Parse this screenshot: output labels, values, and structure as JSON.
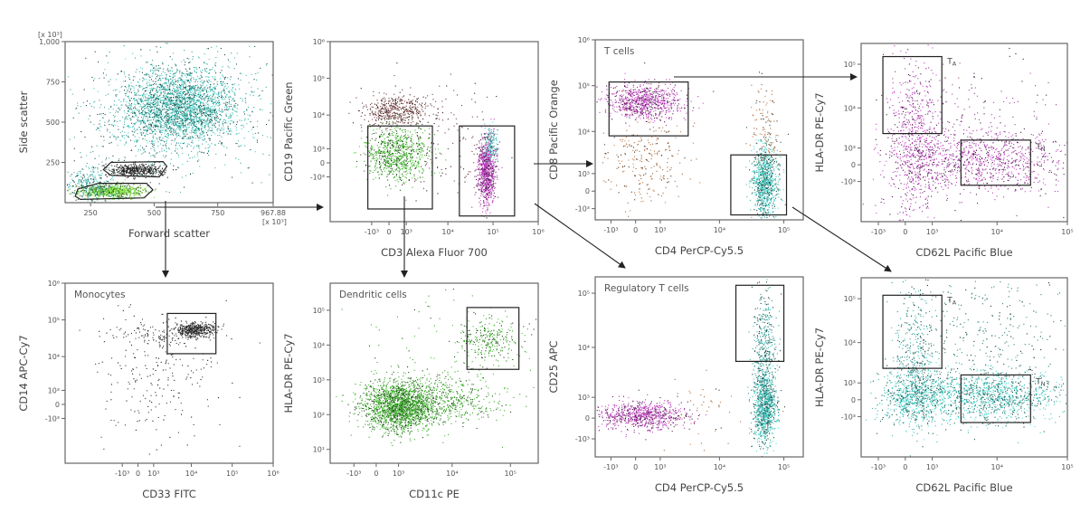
{
  "chart_data": {
    "type": "scatter",
    "panels": [
      {
        "title": "",
        "xlabel": "Forward scatter",
        "ylabel": "Side scatter",
        "x_unit_note": "[x 10³]",
        "y_unit_note": "[x 10³]",
        "xscale": "linear",
        "yscale": "linear",
        "xlim": [
          150,
          967.88
        ],
        "ylim": [
          0,
          1000
        ],
        "xticks": [
          {
            "v": 250,
            "label": "250"
          },
          {
            "v": 500,
            "label": "500"
          },
          {
            "v": 750,
            "label": "750"
          },
          {
            "v": 967.88,
            "label": "967.88"
          }
        ],
        "yticks": [
          {
            "v": 250,
            "label": "250"
          },
          {
            "v": 500,
            "label": "500"
          },
          {
            "v": 750,
            "label": "750"
          },
          {
            "v": 1000,
            "label": "1,000"
          }
        ],
        "gates": [
          {
            "type": "polygon",
            "points": [
              [
                300,
                205
              ],
              [
                330,
                250
              ],
              [
                535,
                255
              ],
              [
                550,
                225
              ],
              [
                520,
                160
              ],
              [
                330,
                170
              ]
            ],
            "label": ""
          },
          {
            "type": "polygon",
            "points": [
              [
                190,
                40
              ],
              [
                200,
                85
              ],
              [
                280,
                120
              ],
              [
                470,
                120
              ],
              [
                495,
                80
              ],
              [
                460,
                30
              ],
              [
                210,
                20
              ]
            ],
            "label": ""
          }
        ],
        "populations": [
          {
            "cx": 600,
            "cy": 590,
            "sx": 110,
            "sy": 120,
            "n": 2600,
            "color": "#36b3aa"
          },
          {
            "cx": 560,
            "cy": 560,
            "sx": 200,
            "sy": 220,
            "n": 700,
            "color": "#3a9e98"
          },
          {
            "cx": 330,
            "cy": 75,
            "sx": 65,
            "sy": 20,
            "n": 900,
            "color": "#7cd645"
          },
          {
            "cx": 250,
            "cy": 120,
            "sx": 50,
            "sy": 60,
            "n": 300,
            "color": "#3aa7a2"
          },
          {
            "cx": 430,
            "cy": 205,
            "sx": 55,
            "sy": 20,
            "n": 450,
            "color": "#2a2a2a"
          }
        ]
      },
      {
        "title": "",
        "xlabel": "CD3 Alexa Fluor 700",
        "ylabel": "CD19 Pacific Green",
        "xscale": "biex",
        "yscale": "biex",
        "xlim": [
          -10000,
          1000000
        ],
        "ylim": [
          -20000,
          1000000
        ],
        "xticks": [
          {
            "v": -1000,
            "label": "-10³"
          },
          {
            "v": 0,
            "label": "0"
          },
          {
            "v": 1000,
            "label": "10³"
          },
          {
            "v": 10000,
            "label": "10⁴"
          },
          {
            "v": 100000,
            "label": "10⁵"
          },
          {
            "v": 1000000,
            "label": "10⁶"
          }
        ],
        "yticks": [
          {
            "v": -1000,
            "label": "-10³"
          },
          {
            "v": 0,
            "label": "0"
          },
          {
            "v": 1000,
            "label": "10³"
          },
          {
            "v": 10000,
            "label": "10⁴"
          },
          {
            "v": 100000,
            "label": "10⁵"
          },
          {
            "v": 1000000,
            "label": "10⁶"
          }
        ],
        "gates": [
          {
            "type": "rect",
            "x": [
              -1300,
              4500
            ],
            "y": [
              -9000,
              5000
            ],
            "label": ""
          },
          {
            "type": "rect",
            "x": [
              18000,
              300000
            ],
            "y": [
              -14000,
              5000
            ],
            "label": ""
          }
        ],
        "populations": [
          {
            "cx": 400,
            "cy": 14000,
            "sx": 0.35,
            "sy": 0.2,
            "n": 450,
            "color": "#6b3a3a"
          },
          {
            "cx": 400,
            "cy": 600,
            "sx": 0.35,
            "sy": 0.35,
            "n": 800,
            "color": "#3fae2c"
          },
          {
            "cx": 70000,
            "cy": -500,
            "sx": 0.1,
            "sy": 0.45,
            "n": 900,
            "color": "#b43cb4"
          },
          {
            "cx": 90000,
            "cy": 1500,
            "sx": 0.08,
            "sy": 0.25,
            "n": 150,
            "color": "#4cc0c0"
          },
          {
            "cx": 5000,
            "cy": 2000,
            "sx": 0.7,
            "sy": 0.8,
            "n": 160,
            "color": "#6b3a4a"
          }
        ]
      },
      {
        "title": "T cells",
        "xlabel": "CD4 PerCP-Cy5.5",
        "ylabel": "CD8 Pacific Orange",
        "xscale": "biex",
        "yscale": "biex",
        "xlim": [
          -2000,
          200000
        ],
        "ylim": [
          -2000,
          1000000
        ],
        "xticks": [
          {
            "v": -1000,
            "label": "-10³"
          },
          {
            "v": 0,
            "label": "0"
          },
          {
            "v": 1000,
            "label": "10³"
          },
          {
            "v": 10000,
            "label": "10⁴"
          },
          {
            "v": 100000,
            "label": "10⁵"
          }
        ],
        "yticks": [
          {
            "v": -1000,
            "label": "-10³"
          },
          {
            "v": 0,
            "label": "0"
          },
          {
            "v": 1000,
            "label": "10³"
          },
          {
            "v": 10000,
            "label": "10⁴"
          },
          {
            "v": 100000,
            "label": "10⁵"
          },
          {
            "v": 1000000,
            "label": "10⁶"
          }
        ],
        "gates": [
          {
            "type": "rect",
            "x": [
              -1100,
              3200
            ],
            "y": [
              8000,
              120000
            ],
            "label": ""
          },
          {
            "type": "rect",
            "x": [
              15000,
              110000
            ],
            "y": [
              -1500,
              3000
            ],
            "label": ""
          }
        ],
        "populations": [
          {
            "cx": 300,
            "cy": 45000,
            "sx": 0.3,
            "sy": 0.18,
            "n": 800,
            "color": "#b03ab0"
          },
          {
            "cx": 50000,
            "cy": 500,
            "sx": 0.1,
            "sy": 0.4,
            "n": 900,
            "color": "#3bbcb4"
          },
          {
            "cx": 300,
            "cy": 2500,
            "sx": 0.35,
            "sy": 0.6,
            "n": 260,
            "color": "#a8683a"
          },
          {
            "cx": 50000,
            "cy": 12000,
            "sx": 0.1,
            "sy": 0.6,
            "n": 120,
            "color": "#a8683a"
          }
        ]
      },
      {
        "title": "",
        "xlabel": "CD62L Pacific Blue",
        "ylabel": "HLA-DR PE-Cy7",
        "xscale": "biex",
        "yscale": "biex",
        "xlim": [
          -2000,
          100000
        ],
        "ylim": [
          -10000,
          300000
        ],
        "xticks": [
          {
            "v": -1000,
            "label": "-10³"
          },
          {
            "v": 0,
            "label": "0"
          },
          {
            "v": 1000,
            "label": "10³"
          },
          {
            "v": 10000,
            "label": "10⁴"
          },
          {
            "v": 100000,
            "label": "10⁵"
          }
        ],
        "yticks": [
          {
            "v": -1000,
            "label": "-10³"
          },
          {
            "v": 0,
            "label": "0"
          },
          {
            "v": 1000,
            "label": "10³"
          },
          {
            "v": 10000,
            "label": "10⁴"
          },
          {
            "v": 100000,
            "label": "10⁵"
          }
        ],
        "gates": [
          {
            "type": "rect",
            "x": [
              -800,
              1500
            ],
            "y": [
              2500,
              150000
            ],
            "label": "T",
            "label_sub": "A"
          },
          {
            "type": "rect",
            "x": [
              3000,
              30000
            ],
            "y": [
              -1300,
              1700
            ],
            "label": "T",
            "label_sub": "N"
          }
        ],
        "populations": [
          {
            "cx": 300,
            "cy": 1500,
            "sx": 0.2,
            "sy": 0.9,
            "n": 700,
            "color": "#b03ab0"
          },
          {
            "cx": 6000,
            "cy": 200,
            "sx": 0.6,
            "sy": 0.35,
            "n": 900,
            "color": "#b03ab0"
          },
          {
            "cx": 5000,
            "cy": 4000,
            "sx": 0.7,
            "sy": 0.9,
            "n": 220,
            "color": "#8a3a8a"
          }
        ]
      },
      {
        "title": "Monocytes",
        "xlabel": "CD33 FITC",
        "ylabel": "CD14 APC-Cy7",
        "xscale": "biex",
        "yscale": "biex",
        "xlim": [
          -30000,
          1000000
        ],
        "ylim": [
          -20000,
          1000000
        ],
        "xticks": [
          {
            "v": -1000,
            "label": "-10³"
          },
          {
            "v": 0,
            "label": "0"
          },
          {
            "v": 1000,
            "label": "10³"
          },
          {
            "v": 10000,
            "label": "10⁴"
          },
          {
            "v": 100000,
            "label": "10⁵"
          },
          {
            "v": 1000000,
            "label": "10⁶"
          }
        ],
        "yticks": [
          {
            "v": -1000,
            "label": "-10³"
          },
          {
            "v": 0,
            "label": "0"
          },
          {
            "v": 1000,
            "label": "10³"
          },
          {
            "v": 10000,
            "label": "10⁴"
          },
          {
            "v": 100000,
            "label": "10⁵"
          },
          {
            "v": 1000000,
            "label": "10⁶"
          }
        ],
        "gates": [
          {
            "type": "rect",
            "x": [
              2500,
              40000
            ],
            "y": [
              12000,
              150000
            ],
            "label": ""
          }
        ],
        "populations": [
          {
            "cx": 12000,
            "cy": 55000,
            "sx": 0.25,
            "sy": 0.1,
            "n": 450,
            "color": "#3a3a3a"
          },
          {
            "cx": 1500,
            "cy": 40000,
            "sx": 0.6,
            "sy": 0.15,
            "n": 120,
            "color": "#3a3a3a"
          },
          {
            "cx": 1500,
            "cy": 2000,
            "sx": 0.8,
            "sy": 0.9,
            "n": 220,
            "color": "#3a3a3a"
          }
        ]
      },
      {
        "title": "Dendritic cells",
        "xlabel": "CD11c PE",
        "ylabel": "HLA-DR PE-Cy7",
        "xscale": "biex",
        "yscale": "log",
        "xlim": [
          -3000,
          300000
        ],
        "ylim": [
          4,
          600000
        ],
        "xticks": [
          {
            "v": -1000,
            "label": "-10³"
          },
          {
            "v": 0,
            "label": "0"
          },
          {
            "v": 1000,
            "label": "10³"
          },
          {
            "v": 10000,
            "label": "10⁴"
          },
          {
            "v": 100000,
            "label": "10⁵"
          }
        ],
        "yticks": [
          {
            "v": 10,
            "label": "10¹"
          },
          {
            "v": 100,
            "label": "10²"
          },
          {
            "v": 1000,
            "label": "10³"
          },
          {
            "v": 10000,
            "label": "10⁴"
          },
          {
            "v": 100000,
            "label": "10⁵"
          }
        ],
        "gates": [
          {
            "type": "rect",
            "x": [
              18000,
              140000
            ],
            "y": [
              2000,
              120000
            ],
            "label": ""
          }
        ],
        "populations": [
          {
            "cx": 1000,
            "cy": 170,
            "sx": 0.3,
            "sy": 0.35,
            "n": 1700,
            "color": "#3aa52a"
          },
          {
            "cx": 5000,
            "cy": 250,
            "sx": 0.6,
            "sy": 0.35,
            "n": 700,
            "color": "#3aa52a"
          },
          {
            "cx": 45000,
            "cy": 14000,
            "sx": 0.25,
            "sy": 0.3,
            "n": 260,
            "color": "#3aa52a"
          },
          {
            "cx": 5000,
            "cy": 5000,
            "sx": 0.9,
            "sy": 1.0,
            "n": 120,
            "color": "#3aa52a"
          }
        ]
      },
      {
        "title": "Regulatory T cells",
        "xlabel": "CD4 PerCP-Cy5.5",
        "ylabel": "CD25 APC",
        "xscale": "biex",
        "yscale": "biex",
        "xlim": [
          -2000,
          200000
        ],
        "ylim": [
          -2500,
          200000
        ],
        "xticks": [
          {
            "v": -1000,
            "label": "-10³"
          },
          {
            "v": 0,
            "label": "0"
          },
          {
            "v": 1000,
            "label": "10³"
          },
          {
            "v": 10000,
            "label": "10⁴"
          },
          {
            "v": 100000,
            "label": "10⁵"
          }
        ],
        "yticks": [
          {
            "v": -1000,
            "label": "-10³"
          },
          {
            "v": 0,
            "label": "0"
          },
          {
            "v": 1000,
            "label": "10³"
          },
          {
            "v": 10000,
            "label": "10⁴"
          },
          {
            "v": 100000,
            "label": "10⁵"
          }
        ],
        "gates": [
          {
            "type": "rect",
            "x": [
              18000,
              100000
            ],
            "y": [
              5500,
              140000
            ],
            "label": ""
          }
        ],
        "populations": [
          {
            "cx": 200,
            "cy": 150,
            "sx": 0.35,
            "sy": 0.12,
            "n": 800,
            "color": "#b03ab0"
          },
          {
            "cx": 50000,
            "cy": 400,
            "sx": 0.09,
            "sy": 0.3,
            "n": 900,
            "color": "#3bbcb4"
          },
          {
            "cx": 50000,
            "cy": 8000,
            "sx": 0.09,
            "sy": 0.55,
            "n": 450,
            "color": "#2f9c96"
          },
          {
            "cx": 5000,
            "cy": 300,
            "sx": 0.6,
            "sy": 0.3,
            "n": 60,
            "color": "#a8683a"
          }
        ]
      },
      {
        "title": "",
        "xlabel": "CD62L Pacific Blue",
        "ylabel": "HLA-DR PE-Cy7",
        "xscale": "biex",
        "yscale": "biex",
        "xlim": [
          -2000,
          100000
        ],
        "ylim": [
          -10000,
          300000
        ],
        "xticks": [
          {
            "v": -1000,
            "label": "-10³"
          },
          {
            "v": 0,
            "label": "0"
          },
          {
            "v": 1000,
            "label": "10³"
          },
          {
            "v": 10000,
            "label": "10⁴"
          },
          {
            "v": 100000,
            "label": "10⁵"
          }
        ],
        "yticks": [
          {
            "v": -1000,
            "label": "-10³"
          },
          {
            "v": 0,
            "label": "0"
          },
          {
            "v": 1000,
            "label": "10³"
          },
          {
            "v": 10000,
            "label": "10⁴"
          },
          {
            "v": 100000,
            "label": "10⁵"
          }
        ],
        "gates": [
          {
            "type": "rect",
            "x": [
              -800,
              1500
            ],
            "y": [
              2500,
              120000
            ],
            "label": "T",
            "label_sub": "A"
          },
          {
            "type": "rect",
            "x": [
              3000,
              30000
            ],
            "y": [
              -1500,
              1700
            ],
            "label": "T",
            "label_sub": "N"
          }
        ],
        "populations": [
          {
            "cx": 300,
            "cy": 5000,
            "sx": 0.15,
            "sy": 0.8,
            "n": 350,
            "color": "#2f9c96"
          },
          {
            "cx": 300,
            "cy": 200,
            "sx": 0.25,
            "sy": 0.35,
            "n": 700,
            "color": "#3bbcb4"
          },
          {
            "cx": 7000,
            "cy": 200,
            "sx": 0.55,
            "sy": 0.3,
            "n": 1200,
            "color": "#3bbcb4"
          },
          {
            "cx": 8000,
            "cy": 15000,
            "sx": 0.6,
            "sy": 0.8,
            "n": 300,
            "color": "#2a7f7a"
          }
        ]
      }
    ]
  }
}
